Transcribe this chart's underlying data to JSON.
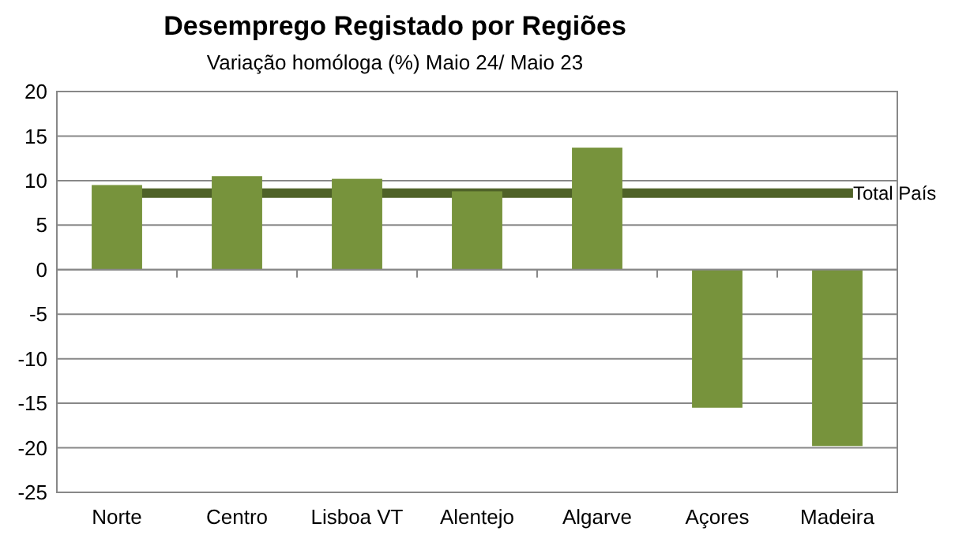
{
  "chart_data": {
    "type": "bar",
    "title": "Desemprego Registado por Regiões",
    "subtitle": "Variação homóloga (%) Maio 24/ Maio 23",
    "categories": [
      "Norte",
      "Centro",
      "Lisboa VT",
      "Alentejo",
      "Algarve",
      "Açores",
      "Madeira"
    ],
    "values": [
      9.5,
      10.5,
      10.2,
      8.8,
      13.7,
      -15.5,
      -19.8
    ],
    "color": "#77933c",
    "ylim": [
      -25,
      20
    ],
    "yticks": [
      -25,
      -20,
      -15,
      -10,
      -5,
      0,
      5,
      10,
      15,
      20
    ],
    "grid": "y",
    "ref_lines": [
      {
        "axis": "y",
        "value": 8.6,
        "label": "Total  País",
        "color": "#4f6228"
      }
    ]
  }
}
